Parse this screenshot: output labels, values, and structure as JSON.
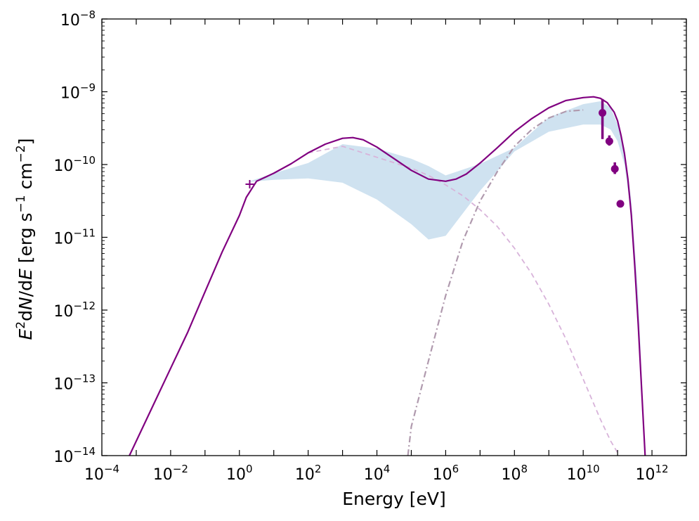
{
  "chart_data": {
    "type": "line",
    "xlabel": "Energy [eV]",
    "ylabel": {
      "prefix_var": "E",
      "prefix_exp": "2",
      "mid": "d",
      "n_var": "N",
      "slash_d": "/d",
      "e_var": "E",
      "units_open": " [erg s",
      "s_exp": "−1",
      "cm": " cm",
      "cm_exp": "−2",
      "units_close": "]"
    },
    "x_scale": "log",
    "y_scale": "log",
    "xlim_log10": [
      -4,
      13
    ],
    "ylim_log10": [
      -14,
      -8
    ],
    "x_ticks": [
      {
        "base": "10",
        "exp": "−4",
        "log10": -4
      },
      {
        "base": "10",
        "exp": "−2",
        "log10": -2
      },
      {
        "base": "10",
        "exp": "0",
        "log10": 0
      },
      {
        "base": "10",
        "exp": "2",
        "log10": 2
      },
      {
        "base": "10",
        "exp": "4",
        "log10": 4
      },
      {
        "base": "10",
        "exp": "6",
        "log10": 6
      },
      {
        "base": "10",
        "exp": "8",
        "log10": 8
      },
      {
        "base": "10",
        "exp": "10",
        "log10": 10
      },
      {
        "base": "10",
        "exp": "12",
        "log10": 12
      }
    ],
    "y_ticks": [
      {
        "base": "10",
        "exp": "−8",
        "log10": -8
      },
      {
        "base": "10",
        "exp": "−9",
        "log10": -9
      },
      {
        "base": "10",
        "exp": "−10",
        "log10": -10
      },
      {
        "base": "10",
        "exp": "−11",
        "log10": -11
      },
      {
        "base": "10",
        "exp": "−12",
        "log10": -12
      },
      {
        "base": "10",
        "exp": "−13",
        "log10": -13
      },
      {
        "base": "10",
        "exp": "−14",
        "log10": -14
      }
    ],
    "grid": false,
    "colors": {
      "model": "#800080",
      "band": "#cfe2f0",
      "synchrotron": "#d8b3da",
      "ic": "#b09aae"
    },
    "series": [
      {
        "style": "solid",
        "x_log10": [
          -3.2,
          -2.5,
          -2,
          -1.5,
          -1,
          -0.5,
          0,
          0.2,
          0.5,
          1,
          1.5,
          2,
          2.5,
          3,
          3.3,
          3.6,
          4,
          4.5,
          5,
          5.5,
          6,
          6.3,
          6.6,
          7,
          7.5,
          8,
          8.5,
          9,
          9.5,
          10,
          10.3,
          10.5,
          10.7,
          10.9,
          11,
          11.1,
          11.2,
          11.3,
          11.4,
          11.5,
          11.6,
          11.7,
          11.8
        ],
        "y_log10": [
          -14,
          -13.3,
          -12.8,
          -12.3,
          -11.75,
          -11.2,
          -10.7,
          -10.45,
          -10.23,
          -10.12,
          -9.99,
          -9.84,
          -9.72,
          -9.64,
          -9.63,
          -9.66,
          -9.76,
          -9.92,
          -10.08,
          -10.2,
          -10.23,
          -10.2,
          -10.13,
          -9.98,
          -9.77,
          -9.55,
          -9.37,
          -9.22,
          -9.12,
          -9.08,
          -9.07,
          -9.09,
          -9.15,
          -9.28,
          -9.4,
          -9.6,
          -9.85,
          -10.2,
          -10.7,
          -11.4,
          -12.2,
          -13.1,
          -14
        ]
      },
      {
        "style": "dashed",
        "x_log10": [
          2,
          3,
          4,
          5,
          5.5,
          6,
          6.5,
          7,
          7.5,
          8,
          8.5,
          9,
          9.5,
          10,
          10.5,
          10.8,
          11.05
        ],
        "y_log10": [
          -9.84,
          -9.75,
          -9.9,
          -10.05,
          -10.15,
          -10.28,
          -10.43,
          -10.62,
          -10.85,
          -11.15,
          -11.5,
          -11.92,
          -12.4,
          -12.95,
          -13.5,
          -13.8,
          -14
        ]
      },
      {
        "style": "dashdot",
        "x_log10": [
          4.9,
          5,
          5.5,
          6,
          6.5,
          7,
          7.5,
          8,
          8.5,
          9,
          9.5,
          10
        ],
        "y_log10": [
          -14,
          -13.6,
          -12.7,
          -11.8,
          -11.05,
          -10.5,
          -10.1,
          -9.75,
          -9.52,
          -9.36,
          -9.27,
          -9.25
        ]
      }
    ],
    "band": {
      "x_log10": [
        0.3,
        1,
        2,
        3,
        4,
        5,
        5.5,
        6,
        7,
        8,
        9,
        10,
        10.5,
        10.8,
        11,
        11.2,
        11.4,
        11.6,
        11.8
      ],
      "upper_log10": [
        -10.23,
        -10.12,
        -9.98,
        -9.72,
        -9.78,
        -9.92,
        -10.02,
        -10.15,
        -9.99,
        -9.77,
        -9.35,
        -9.17,
        -9.13,
        -9.22,
        -9.45,
        -9.78,
        -10.5,
        -11.8,
        -14
      ],
      "lower_log10": [
        -10.24,
        -10.21,
        -10.19,
        -10.25,
        -10.48,
        -10.82,
        -11.03,
        -10.98,
        -10.36,
        -9.82,
        -9.55,
        -9.45,
        -9.45,
        -9.52,
        -9.68,
        -10.0,
        -10.7,
        -12.0,
        -14
      ]
    },
    "data_points": [
      {
        "x_log10": 10.56,
        "y_log10": -9.29,
        "yerr_low_log10": -9.65,
        "yerr_high_log10": -9.1
      },
      {
        "x_log10": 10.76,
        "y_log10": -9.68,
        "yerr_low_log10": -9.74,
        "yerr_high_log10": -9.6
      },
      {
        "x_log10": 10.92,
        "y_log10": -10.06,
        "yerr_low_log10": -10.13,
        "yerr_high_log10": -9.97
      },
      {
        "x_log10": 11.08,
        "y_log10": -10.54,
        "yerr_low_log10": -10.58,
        "yerr_high_log10": -10.51
      }
    ],
    "marker": {
      "x_log10": 0.3,
      "y_log10": -10.27
    }
  }
}
